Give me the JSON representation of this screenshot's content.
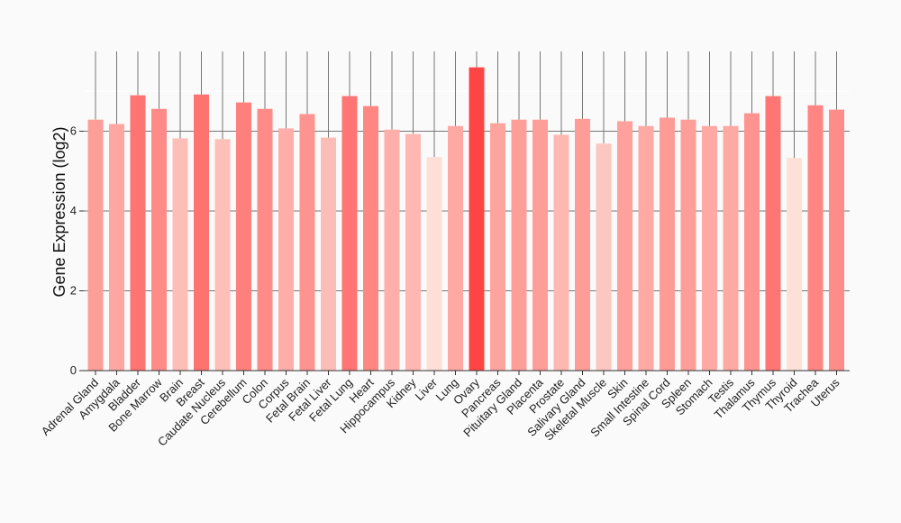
{
  "chart_data": {
    "type": "bar",
    "title": "",
    "xlabel": "",
    "ylabel": "Gene Expression (log2)",
    "ylim": [
      0,
      8
    ],
    "yticks": [
      0,
      2,
      4,
      6
    ],
    "grid": true,
    "categories": [
      "Adrenal Gland",
      "Amygdala",
      "Bladder",
      "Bone Marrow",
      "Brain",
      "Breast",
      "Caudate Nucleus",
      "Cerebellum",
      "Colon",
      "Corpus",
      "Fetal Brain",
      "Fetal Liver",
      "Fetal Lung",
      "Heart",
      "Hippocampus",
      "Kidney",
      "Liver",
      "Lung",
      "Ovary",
      "Pancreas",
      "Pituitary Gland",
      "Placenta",
      "Prostate",
      "Salivary Gland",
      "Skeletal Muscle",
      "Skin",
      "Small Intestine",
      "Spinal Cord",
      "Spleen",
      "Stomach",
      "Testis",
      "Thalamus",
      "Thymus",
      "Thyroid",
      "Trachea",
      "Uterus"
    ],
    "values": [
      6.29,
      6.18,
      6.9,
      6.56,
      5.82,
      6.92,
      5.8,
      6.72,
      6.56,
      6.07,
      6.43,
      5.84,
      6.88,
      6.63,
      6.04,
      5.93,
      5.35,
      6.13,
      7.6,
      6.2,
      6.29,
      6.29,
      5.91,
      6.31,
      5.69,
      6.25,
      6.13,
      6.34,
      6.29,
      6.13,
      6.13,
      6.45,
      6.88,
      5.33,
      6.65,
      6.54
    ],
    "color_low": "#fde0d8",
    "color_high": "#ff4444"
  }
}
